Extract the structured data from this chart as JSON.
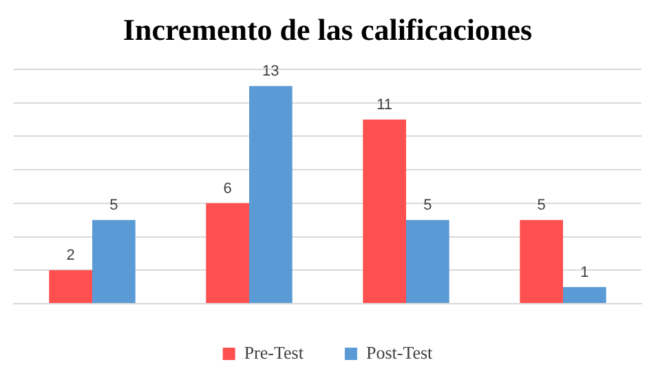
{
  "chart_data": {
    "type": "bar",
    "title": "Incremento de las calificaciones",
    "categories": [
      null,
      null,
      null,
      null
    ],
    "series": [
      {
        "name": "Pre-Test",
        "color": "#ff5050",
        "values": [
          2,
          6,
          11,
          5
        ]
      },
      {
        "name": "Post-Test",
        "color": "#5b9bd5",
        "values": [
          5,
          13,
          5,
          1
        ]
      }
    ],
    "grid": "y",
    "tick_labels": false,
    "legend": "bottom",
    "data_labels": true
  }
}
